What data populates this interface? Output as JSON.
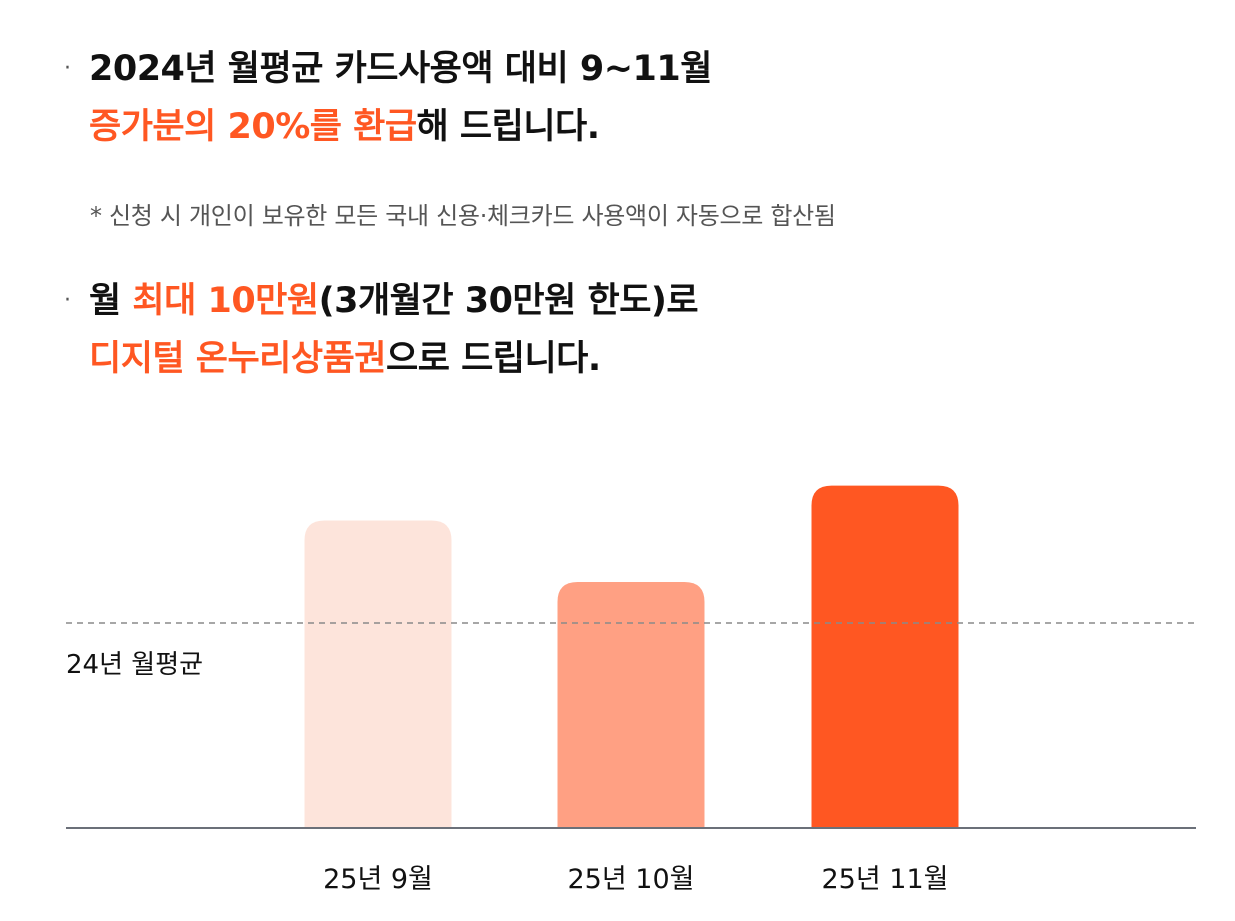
{
  "headline1": {
    "line1": "2024년 월평균 카드사용액 대비 9~11월",
    "line2_highlight": "증가분의 20%를 환급",
    "line2_rest": "해 드립니다."
  },
  "note": "* 신청 시 개인이 보유한 모든 국내 신용·체크카드 사용액이 자동으로 합산됨",
  "headline2": {
    "line1_pre": "월 ",
    "line1_highlight": "최대 10만원",
    "line1_rest": "(3개월간 30만원 한도)로",
    "line2_highlight": "디지털 온누리상품권",
    "line2_rest": "으로 드립니다."
  },
  "colors": {
    "accent": "#ff5722",
    "bar_light": "#fde4db",
    "bar_mid": "#ffa083",
    "bar_strong": "#ff5722",
    "axis": "#6b7079",
    "reference_line": "#8a8a8a"
  },
  "chart_data": {
    "type": "bar",
    "categories": [
      "25년 9월",
      "25년 10월",
      "25년 11월"
    ],
    "values": [
      1.5,
      1.2,
      1.67
    ],
    "bar_colors": [
      "#fde4db",
      "#ffa083",
      "#ff5722"
    ],
    "reference_line": {
      "label": "24년 월평균",
      "value": 1.0,
      "style": "dashed"
    },
    "ylim": [
      0,
      2
    ],
    "grid": false,
    "y_axis_visible": false,
    "title": "",
    "xlabel": "",
    "ylabel": ""
  }
}
